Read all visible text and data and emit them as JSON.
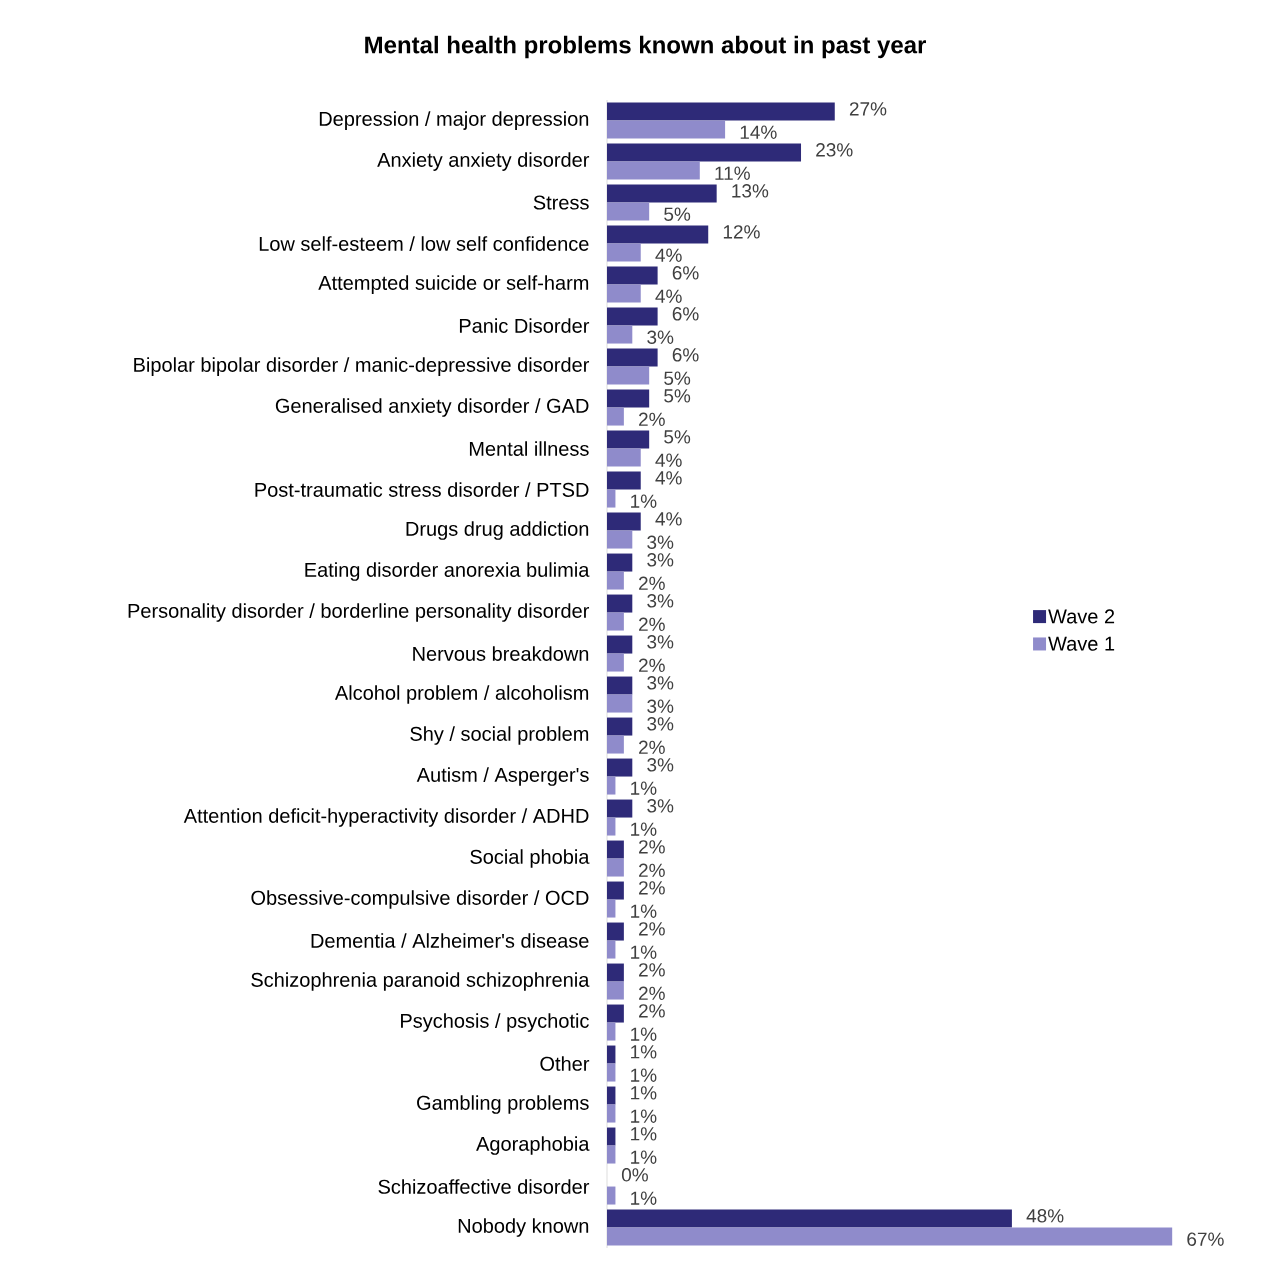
{
  "chart_data": {
    "type": "bar",
    "orientation": "horizontal",
    "title": "Mental health problems known about in past year",
    "legend": "right",
    "categories": [
      "Depression / major depression",
      "Anxiety anxiety disorder",
      "Stress",
      "Low self-esteem / low self confidence",
      "Attempted suicide or self-harm",
      "Panic Disorder",
      "Bipolar bipolar disorder / manic-depressive disorder",
      "Generalised anxiety disorder / GAD",
      "Mental illness",
      "Post-traumatic stress disorder / PTSD",
      "Drugs drug addiction",
      "Eating disorder anorexia bulimia",
      "Personality disorder / borderline personality disorder",
      "Nervous breakdown",
      "Alcohol problem / alcoholism",
      "Shy / social problem",
      "Autism / Asperger's",
      "Attention deficit-hyperactivity disorder / ADHD",
      "Social phobia",
      "Obsessive-compulsive disorder / OCD",
      "Dementia / Alzheimer's disease",
      "Schizophrenia paranoid schizophrenia",
      "Psychosis / psychotic",
      "Other",
      "Gambling problems",
      "Agoraphobia",
      "Schizoaffective disorder",
      "Nobody known"
    ],
    "series": [
      {
        "name": "Wave 2",
        "color": "#2e2a78",
        "values": [
          27,
          23,
          13,
          12,
          6,
          6,
          6,
          5,
          5,
          4,
          4,
          3,
          3,
          3,
          3,
          3,
          3,
          3,
          2,
          2,
          2,
          2,
          2,
          1,
          1,
          1,
          0,
          48
        ],
        "value_labels": [
          "27%",
          "23%",
          "13%",
          "12%",
          "6%",
          "6%",
          "6%",
          "5%",
          "5%",
          "4%",
          "4%",
          "3%",
          "3%",
          "3%",
          "3%",
          "3%",
          "3%",
          "3%",
          "2%",
          "2%",
          "2%",
          "2%",
          "2%",
          "1%",
          "1%",
          "1%",
          "0%",
          "48%"
        ]
      },
      {
        "name": "Wave 1",
        "color": "#8f8bcb",
        "values": [
          14,
          11,
          5,
          4,
          4,
          3,
          5,
          2,
          4,
          1,
          3,
          2,
          2,
          2,
          3,
          2,
          1,
          1,
          2,
          1,
          1,
          2,
          1,
          1,
          1,
          1,
          1,
          67
        ],
        "value_labels": [
          "14%",
          "11%",
          "5%",
          "4%",
          "4%",
          "3%",
          "5%",
          "2%",
          "4%",
          "1%",
          "3%",
          "2%",
          "2%",
          "2%",
          "3%",
          "2%",
          "1%",
          "1%",
          "2%",
          "1%",
          "1%",
          "2%",
          "1%",
          "1%",
          "1%",
          "1%",
          "1%",
          "67%"
        ]
      }
    ]
  }
}
